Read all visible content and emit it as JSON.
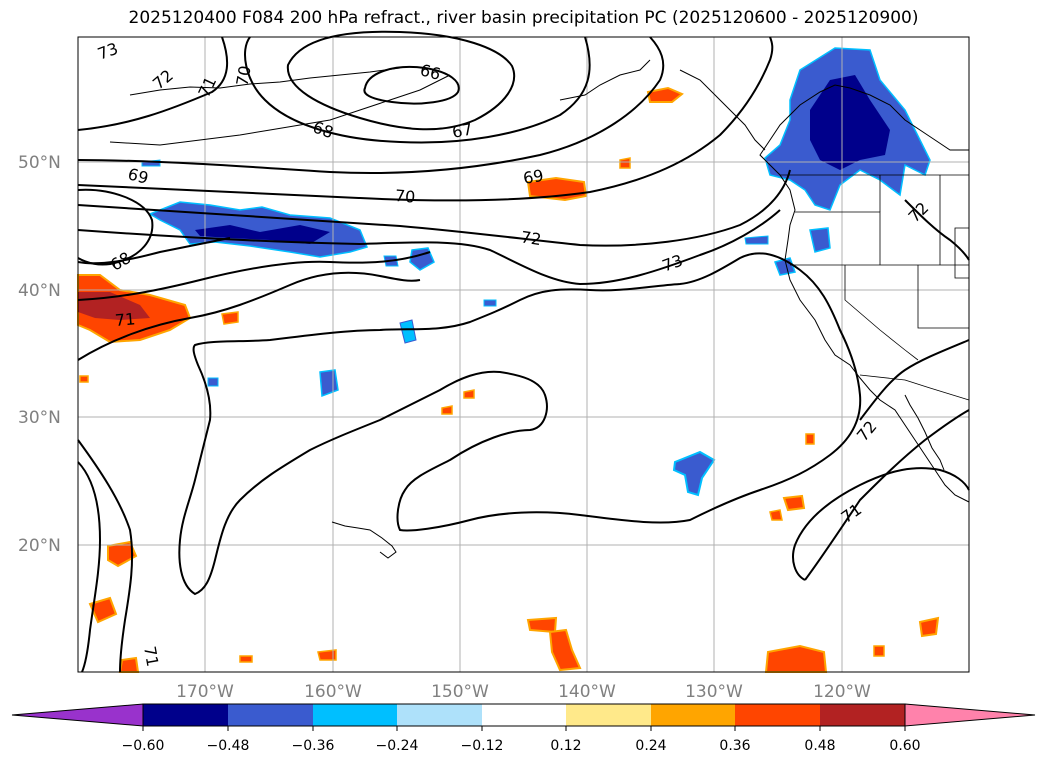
{
  "title": "2025120400 F084 200 hPa refract., river basin precipitation PC (2025120600 - 2025120900)",
  "map": {
    "lat_labels": [
      {
        "text": "50°N",
        "lat": 50
      },
      {
        "text": "40°N",
        "lat": 40
      },
      {
        "text": "30°N",
        "lat": 30
      },
      {
        "text": "20°N",
        "lat": 20
      }
    ],
    "lon_labels": [
      {
        "text": "170°W",
        "lon": -170
      },
      {
        "text": "160°W",
        "lon": -160
      },
      {
        "text": "150°W",
        "lon": -150
      },
      {
        "text": "140°W",
        "lon": -140
      },
      {
        "text": "130°W",
        "lon": -130
      },
      {
        "text": "120°W",
        "lon": -120
      }
    ],
    "lon_range": [
      -180,
      -110
    ],
    "lat_range": [
      10,
      60
    ],
    "contour_labels": [
      "73",
      "72",
      "71",
      "70",
      "66",
      "67",
      "68",
      "69",
      "70",
      "72",
      "73",
      "69",
      "68",
      "71",
      "72",
      "71",
      "71",
      "72"
    ]
  },
  "colorbar": {
    "ticks": [
      "−0.60",
      "−0.48",
      "−0.36",
      "−0.24",
      "−0.12",
      "0.12",
      "0.24",
      "0.36",
      "0.48",
      "0.60"
    ],
    "levels": [
      -0.6,
      -0.48,
      -0.36,
      -0.24,
      -0.12,
      0.12,
      0.24,
      0.36,
      0.48,
      0.6
    ],
    "colors": [
      "#9932CC",
      "#00008B",
      "#3A5BCF",
      "#00BFFF",
      "#AEE1FA",
      "#FFFFFF",
      "#FFE98A",
      "#FFA500",
      "#FF4500",
      "#B22222",
      "#FF82AB"
    ]
  },
  "colors": {
    "coast": "#000000",
    "contour": "#000000",
    "grid": "#b0b0b0"
  }
}
